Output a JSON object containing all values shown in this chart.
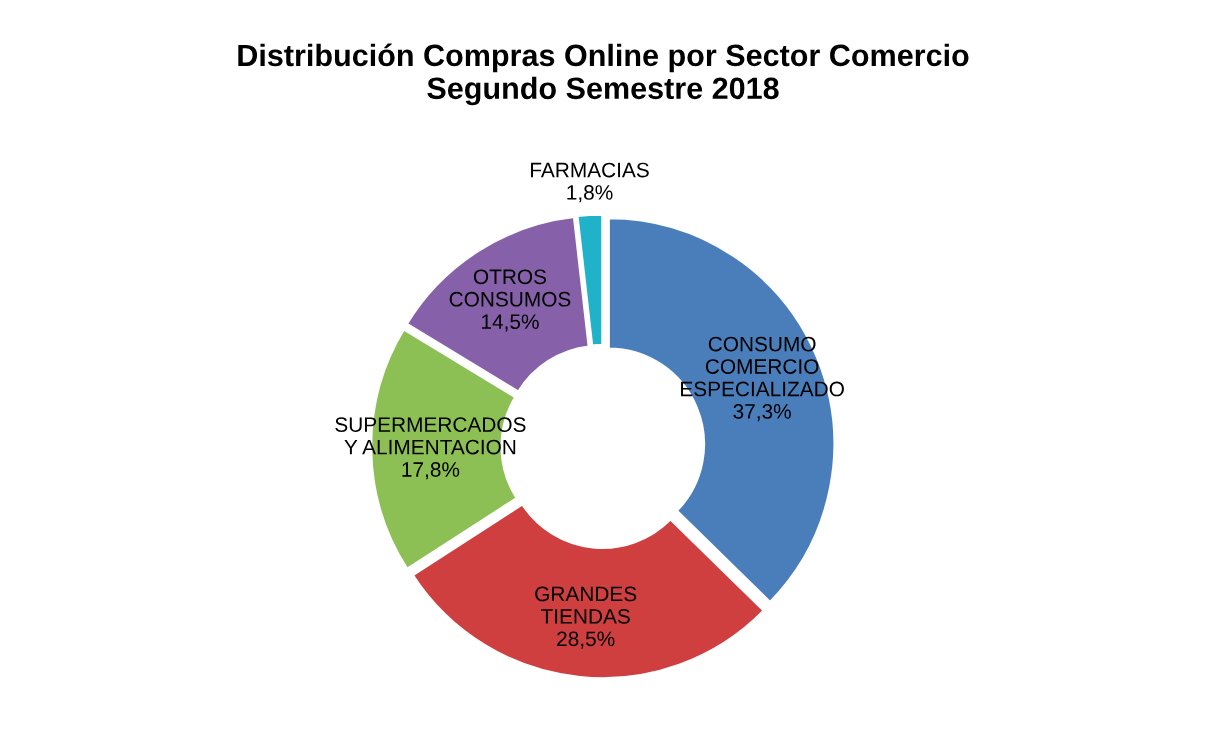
{
  "chart_data": {
    "type": "donut",
    "title": "Distribución Compras Online por Sector Comercio\nSegundo Semestre 2018",
    "categories": [
      "CONSUMO\nCOMERCIO\nESPECIALIZADO",
      "GRANDES\nTIENDAS",
      "SUPERMERCADOS\nY ALIMENTACION",
      "OTROS\nCONSUMOS",
      "FARMACIAS"
    ],
    "values": [
      37.3,
      28.5,
      17.8,
      14.5,
      1.8
    ],
    "value_labels": [
      "37,3%",
      "28,5%",
      "17,8%",
      "14,5%",
      "1,8%"
    ],
    "colors": [
      "#4a7ebb",
      "#cf3f3f",
      "#8cbf54",
      "#8661a9",
      "#1fb2c8"
    ],
    "legend": false
  }
}
